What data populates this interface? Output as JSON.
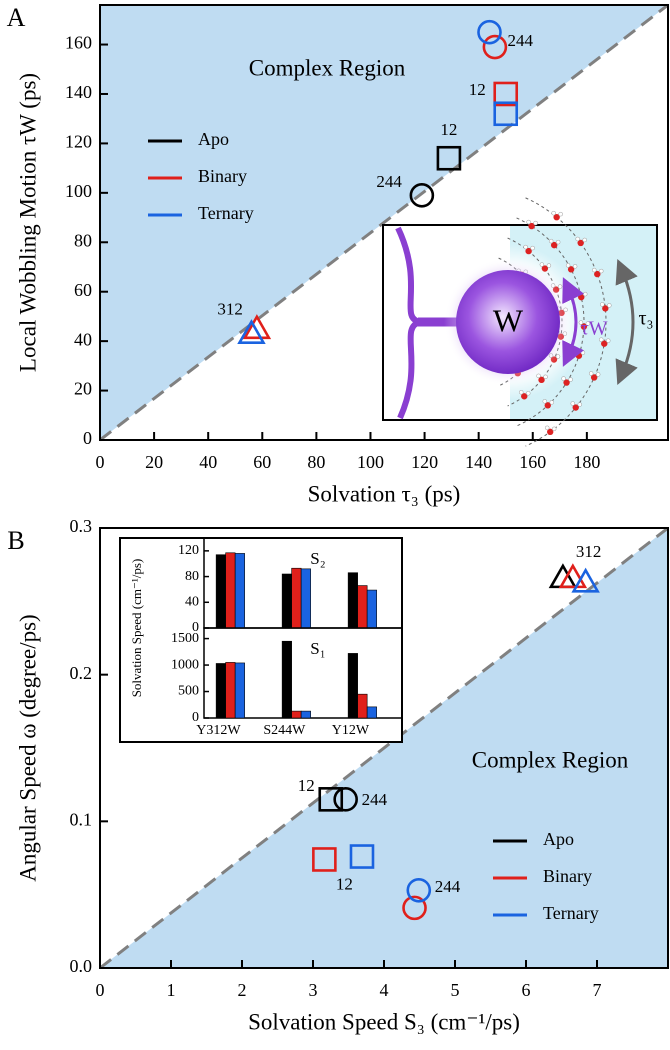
{
  "chart_data": [
    {
      "type": "scatter",
      "panel_label": "A",
      "x_label": "Solvation τ₃ (ps)",
      "y_label": "Local Wobbling Motion τW (ps)",
      "region_label": "Complex Region",
      "xlim": [
        0,
        210
      ],
      "ylim": [
        0,
        176
      ],
      "xticks": [
        0,
        20,
        40,
        60,
        80,
        100,
        120,
        140,
        160,
        180
      ],
      "yticks": [
        0,
        20,
        40,
        60,
        80,
        100,
        120,
        140,
        160
      ],
      "diagonal": true,
      "shade": "above",
      "shade_color": "#bfdcf2",
      "legend": "upper left",
      "markers": [
        "circle",
        "square",
        "triangle"
      ],
      "series": [
        {
          "name": "Apo",
          "color": "#000000",
          "x": [
            119,
            129,
            null
          ],
          "y": [
            99,
            114,
            null
          ],
          "point_labels": [
            "244",
            "12",
            null
          ]
        },
        {
          "name": "Binary",
          "color": "#e0201b",
          "x": [
            146,
            150,
            58
          ],
          "y": [
            159,
            140,
            45
          ],
          "point_labels": [
            null,
            "12",
            "312"
          ]
        },
        {
          "name": "Ternary",
          "color": "#1a63e0",
          "x": [
            144,
            150,
            56
          ],
          "y": [
            165,
            132,
            43
          ],
          "point_labels": [
            "244",
            null,
            null
          ]
        }
      ],
      "inset": {
        "labels": [
          "W",
          "τW",
          "τ₃"
        ]
      }
    },
    {
      "type": "scatter",
      "panel_label": "B",
      "x_label": "Solvation Speed S₃ (cm⁻¹/ps)",
      "y_label": "Angular Speed ω (degree/ps)",
      "region_label": "Complex Region",
      "xlim": [
        0,
        8
      ],
      "ylim": [
        0,
        0.3
      ],
      "xticks": [
        0,
        1,
        2,
        3,
        4,
        5,
        6,
        7
      ],
      "yticks": [
        {
          "value": 0,
          "label": "0.0"
        },
        0.1,
        0.2,
        0.3
      ],
      "diagonal": true,
      "shade": "below",
      "shade_color": "#bfdcf2",
      "legend": "lower right",
      "markers": [
        "circle",
        "square",
        "triangle"
      ],
      "series": [
        {
          "name": "Apo",
          "color": "#000000",
          "x": [
            3.46,
            3.25,
            6.52
          ],
          "y": [
            0.115,
            0.115,
            0.266
          ],
          "point_labels": [
            "244",
            "12",
            "312"
          ]
        },
        {
          "name": "Binary",
          "color": "#e0201b",
          "x": [
            4.43,
            3.16,
            6.66
          ],
          "y": [
            0.041,
            0.074,
            0.266
          ],
          "point_labels": [
            null,
            "12",
            null
          ]
        },
        {
          "name": "Ternary",
          "color": "#1a63e0",
          "x": [
            4.49,
            3.69,
            6.84
          ],
          "y": [
            0.053,
            0.076,
            0.263
          ],
          "point_labels": [
            "244",
            null,
            null
          ]
        }
      ]
    },
    {
      "type": "bar",
      "y_label": "Solvation Speed (cm⁻¹/ps)",
      "categories": [
        "Y312W",
        "S244W",
        "Y12W"
      ],
      "panels": [
        {
          "label": "S₂",
          "ylim": [
            0,
            140
          ],
          "yticks": [
            0,
            40,
            80,
            120
          ],
          "series": [
            {
              "color": "#000000",
              "values": [
                114,
                84,
                86
              ]
            },
            {
              "color": "#e0201b",
              "values": [
                117,
                93,
                66
              ]
            },
            {
              "color": "#1a63e0",
              "values": [
                116,
                92,
                59
              ]
            }
          ]
        },
        {
          "label": "S₁",
          "ylim": [
            0,
            1700
          ],
          "yticks": [
            0,
            500,
            1000,
            1500
          ],
          "series": [
            {
              "color": "#000000",
              "values": [
                1030,
                1450,
                1220
              ]
            },
            {
              "color": "#e0201b",
              "values": [
                1050,
                130,
                450
              ]
            },
            {
              "color": "#1a63e0",
              "values": [
                1040,
                130,
                210
              ]
            }
          ]
        }
      ]
    }
  ]
}
